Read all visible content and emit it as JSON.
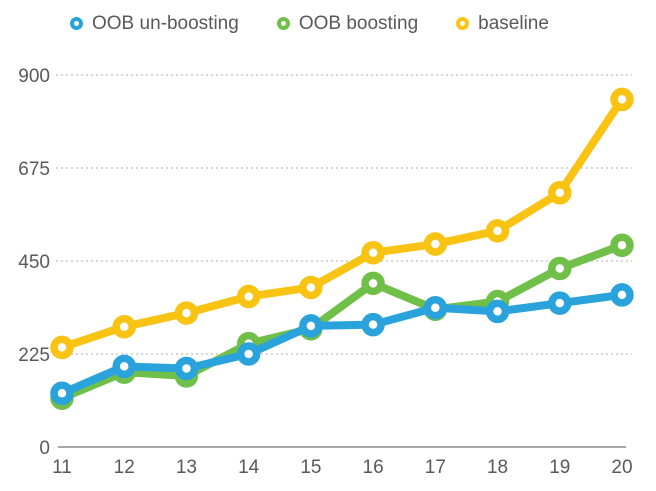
{
  "chart_data": {
    "type": "line",
    "title": "",
    "xlabel": "",
    "ylabel": "",
    "x": [
      11,
      12,
      13,
      14,
      15,
      16,
      17,
      18,
      19,
      20
    ],
    "xtick_labels": [
      "11",
      "12",
      "13",
      "14",
      "15",
      "16",
      "17",
      "18",
      "19",
      "20"
    ],
    "series": [
      {
        "name": "OOB un-boosting",
        "color": "#2AA3DC",
        "values": [
          130,
          195,
          190,
          225,
          293,
          296,
          337,
          328,
          348,
          368
        ]
      },
      {
        "name": "OOB boosting",
        "color": "#6FBF49",
        "values": [
          118,
          181,
          172,
          250,
          286,
          396,
          333,
          352,
          432,
          488
        ]
      },
      {
        "name": "baseline",
        "color": "#F8C312",
        "values": [
          241,
          291,
          324,
          364,
          386,
          470,
          491,
          523,
          615,
          841
        ]
      }
    ],
    "draw_order": [
      1,
      0,
      2
    ],
    "ylim": [
      0,
      900
    ],
    "yticks": [
      0,
      225,
      450,
      675,
      900
    ],
    "ytick_labels": [
      "0",
      "225",
      "450",
      "675",
      "900"
    ],
    "grid": "horizontal-dotted",
    "legend_position": "top",
    "marker": "open-circle",
    "background": "#FFFFFF"
  },
  "style_colors": {
    "gridline": "#C9C9C9",
    "axis_line": "#A8A8A8",
    "tick_label": "#595959",
    "legend_text": "#58595B"
  }
}
